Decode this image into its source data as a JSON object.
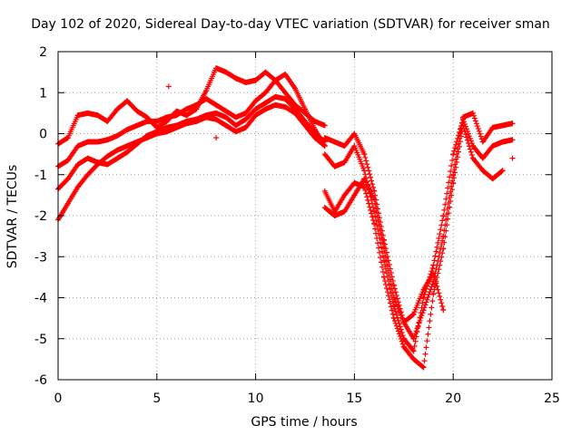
{
  "chart_data": {
    "type": "scatter",
    "title": "Day 102 of 2020, Sidereal Day-to-day VTEC variation (SDTVAR) for receiver sman",
    "xlabel": "GPS time / hours",
    "ylabel": "SDTVAR / TECUs",
    "xlim": [
      0,
      25
    ],
    "ylim": [
      -6,
      2
    ],
    "x_ticks": [
      0,
      5,
      10,
      15,
      20,
      25
    ],
    "y_ticks": [
      -6,
      -5,
      -4,
      -3,
      -2,
      -1,
      0,
      1,
      2
    ],
    "grid": true,
    "marker": "+",
    "series_color": "#ff0000",
    "series": [
      {
        "name": "trace-1",
        "x": [
          0.0,
          0.5,
          1.0,
          1.5,
          2.0,
          2.5,
          3.0,
          3.5,
          4.0,
          4.5,
          5.0,
          5.5,
          6.0,
          6.5,
          7.0,
          7.5,
          8.0,
          8.5,
          9.0,
          9.5,
          10.0,
          10.5,
          11.0,
          11.5,
          12.0,
          12.5,
          13.0,
          13.5
        ],
        "y": [
          -0.25,
          -0.1,
          0.45,
          0.5,
          0.45,
          0.3,
          0.6,
          0.8,
          0.55,
          0.4,
          0.15,
          0.3,
          0.55,
          0.45,
          0.6,
          1.05,
          1.6,
          1.5,
          1.35,
          1.25,
          1.3,
          1.5,
          1.3,
          1.0,
          0.7,
          0.5,
          0.3,
          0.2
        ]
      },
      {
        "name": "trace-2",
        "x": [
          0.0,
          0.5,
          1.0,
          1.5,
          2.0,
          2.5,
          3.0,
          3.5,
          4.0,
          4.5,
          5.0,
          5.5,
          6.0,
          6.5,
          7.0,
          7.5,
          8.0,
          8.5,
          9.0,
          9.5,
          10.0,
          10.5,
          11.0,
          11.5,
          12.0,
          12.5,
          13.0,
          13.5
        ],
        "y": [
          -0.8,
          -0.65,
          -0.3,
          -0.2,
          -0.2,
          -0.15,
          -0.05,
          0.1,
          0.2,
          0.3,
          0.3,
          0.4,
          0.45,
          0.6,
          0.7,
          0.85,
          0.7,
          0.55,
          0.4,
          0.5,
          0.8,
          1.0,
          1.3,
          1.45,
          1.1,
          0.6,
          0.1,
          -0.3
        ]
      },
      {
        "name": "trace-3",
        "x": [
          0.0,
          0.5,
          1.0,
          1.5,
          2.0,
          2.5,
          3.0,
          3.5,
          4.0,
          4.5,
          5.0,
          5.5,
          6.0,
          6.5,
          7.0,
          7.5,
          8.0,
          8.5,
          9.0,
          9.5,
          10.0,
          10.5,
          11.0,
          11.5,
          12.0,
          12.5,
          13.0,
          13.5
        ],
        "y": [
          -1.35,
          -1.1,
          -0.75,
          -0.6,
          -0.7,
          -0.75,
          -0.6,
          -0.45,
          -0.25,
          -0.05,
          0.05,
          0.15,
          0.2,
          0.3,
          0.35,
          0.45,
          0.5,
          0.4,
          0.2,
          0.35,
          0.6,
          0.75,
          0.9,
          0.85,
          0.6,
          0.3,
          0.0,
          -0.2
        ]
      },
      {
        "name": "trace-4",
        "x": [
          0.0,
          0.5,
          1.0,
          1.5,
          2.0,
          2.5,
          3.0,
          3.5,
          4.0,
          4.5,
          5.0,
          5.5,
          6.0,
          6.5,
          7.0,
          7.5,
          8.0,
          8.5,
          9.0,
          9.5,
          10.0,
          10.5,
          11.0,
          11.5,
          12.0,
          12.5,
          13.0,
          13.5
        ],
        "y": [
          -2.1,
          -1.7,
          -1.3,
          -1.0,
          -0.75,
          -0.55,
          -0.4,
          -0.3,
          -0.2,
          -0.1,
          0.0,
          0.05,
          0.15,
          0.25,
          0.3,
          0.4,
          0.35,
          0.2,
          0.05,
          0.15,
          0.45,
          0.6,
          0.7,
          0.65,
          0.5,
          0.2,
          -0.1,
          -0.3
        ]
      },
      {
        "name": "trace-5",
        "x": [
          13.5,
          14.0,
          14.5,
          15.0,
          15.5,
          16.0,
          16.5,
          17.0,
          17.5,
          18.0,
          18.5,
          19.0,
          19.5,
          20.0,
          20.5,
          21.0,
          21.5,
          22.0,
          22.5,
          23.0
        ],
        "y": [
          -0.1,
          -0.2,
          -0.3,
          0.0,
          -0.5,
          -1.4,
          -2.6,
          -3.7,
          -4.6,
          -5.0,
          -4.3,
          -3.6,
          -2.5,
          -1.0,
          0.4,
          0.5,
          -0.2,
          0.15,
          0.2,
          0.25
        ]
      },
      {
        "name": "trace-6",
        "x": [
          13.5,
          14.0,
          14.5,
          15.0,
          15.5,
          16.0,
          16.5,
          17.0,
          17.5,
          18.0,
          18.5,
          19.0,
          19.5,
          20.0,
          20.5,
          21.0,
          21.5,
          22.0,
          22.5,
          23.0
        ],
        "y": [
          -0.5,
          -0.8,
          -0.7,
          -0.3,
          -0.9,
          -1.9,
          -3.1,
          -4.2,
          -5.0,
          -5.3,
          -4.0,
          -3.2,
          -2.0,
          -0.5,
          0.35,
          -0.3,
          -0.6,
          -0.3,
          -0.2,
          -0.15
        ]
      },
      {
        "name": "trace-7",
        "x": [
          13.5,
          14.0,
          14.5,
          15.0,
          15.5,
          16.0,
          16.5,
          17.0,
          17.5,
          18.0,
          18.5,
          19.0,
          19.5,
          20.0,
          20.5,
          21.0,
          21.5,
          22.0,
          22.5
        ],
        "y": [
          -1.4,
          -1.9,
          -1.5,
          -1.2,
          -1.3,
          -2.2,
          -3.5,
          -4.5,
          -5.2,
          -5.5,
          -5.7,
          -3.9,
          -2.8,
          -1.2,
          0.2,
          -0.6,
          -0.9,
          -1.1,
          -0.9
        ]
      },
      {
        "name": "trace-8",
        "x": [
          13.5,
          14.0,
          14.5,
          15.0,
          15.5,
          16.0,
          16.5,
          17.0,
          17.5,
          18.0,
          18.5,
          19.0,
          19.5
        ],
        "y": [
          -1.8,
          -2.0,
          -1.9,
          -1.5,
          -1.1,
          -1.6,
          -2.8,
          -4.0,
          -4.6,
          -4.4,
          -3.8,
          -3.4,
          -4.3
        ]
      }
    ],
    "outliers": {
      "x": [
        5.6,
        8.0,
        23.0
      ],
      "y": [
        1.15,
        -0.1,
        -0.6
      ]
    }
  }
}
